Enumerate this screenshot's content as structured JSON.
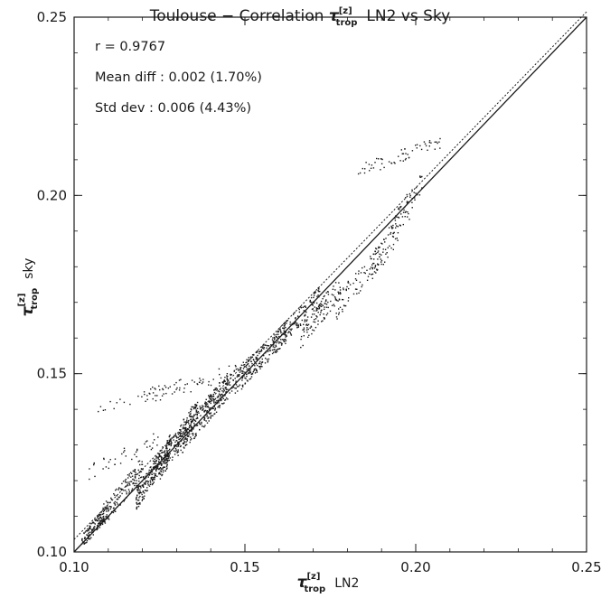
{
  "chart_data": {
    "type": "scatter",
    "title": {
      "prefix": "Toulouse  −  Correlation ",
      "symbol": "τ",
      "superscript": "[z]",
      "subscript": "trop",
      "suffix": "LN2  vs  Sky"
    },
    "xlabel": {
      "symbol": "τ",
      "superscript": "[z]",
      "subscript": "trop",
      "text": "LN2"
    },
    "ylabel": {
      "symbol": "τ",
      "superscript": "[z]",
      "subscript": "trop",
      "text": "sky"
    },
    "xlim": [
      0.1,
      0.25
    ],
    "ylim": [
      0.1,
      0.25
    ],
    "x_ticks": [
      0.1,
      0.15,
      0.2,
      0.25
    ],
    "y_ticks": [
      0.1,
      0.15,
      0.2,
      0.25
    ],
    "x_tick_labels": [
      "0.10",
      "0.15",
      "0.20",
      "0.25"
    ],
    "y_tick_labels": [
      "0.10",
      "0.15",
      "0.20",
      "0.25"
    ],
    "grid": false,
    "annotations": [
      "r = 0.9767",
      "Mean diff : 0.002 (1.70%)",
      "Std dev : 0.006 (4.43%)"
    ],
    "lines": [
      {
        "name": "1:1 line",
        "style": "solid",
        "x": [
          0.1,
          0.25
        ],
        "y": [
          0.1,
          0.25
        ]
      },
      {
        "name": "regression fit",
        "style": "dotted",
        "x": [
          0.1,
          0.25
        ],
        "y": [
          0.1035,
          0.2515
        ]
      }
    ],
    "clusters": [
      {
        "x": [
          0.102,
          0.11
        ],
        "y": [
          0.103,
          0.112
        ],
        "count": 140
      },
      {
        "x": [
          0.108,
          0.12
        ],
        "y": [
          0.11,
          0.124
        ],
        "count": 140
      },
      {
        "x": [
          0.118,
          0.128
        ],
        "y": [
          0.115,
          0.13
        ],
        "count": 260
      },
      {
        "x": [
          0.125,
          0.136
        ],
        "y": [
          0.124,
          0.14
        ],
        "count": 200
      },
      {
        "x": [
          0.13,
          0.145
        ],
        "y": [
          0.13,
          0.147
        ],
        "count": 200
      },
      {
        "x": [
          0.138,
          0.155
        ],
        "y": [
          0.14,
          0.155
        ],
        "count": 180
      },
      {
        "x": [
          0.148,
          0.162
        ],
        "y": [
          0.148,
          0.162
        ],
        "count": 140
      },
      {
        "x": [
          0.158,
          0.172
        ],
        "y": [
          0.158,
          0.172
        ],
        "count": 130
      },
      {
        "x": [
          0.166,
          0.178
        ],
        "y": [
          0.16,
          0.175
        ],
        "count": 100
      },
      {
        "x": [
          0.176,
          0.19
        ],
        "y": [
          0.168,
          0.184
        ],
        "count": 80
      },
      {
        "x": [
          0.186,
          0.198
        ],
        "y": [
          0.178,
          0.196
        ],
        "count": 70
      },
      {
        "x": [
          0.192,
          0.202
        ],
        "y": [
          0.19,
          0.204
        ],
        "count": 50
      },
      {
        "x": [
          0.183,
          0.207
        ],
        "y": [
          0.207,
          0.215
        ],
        "count": 60
      },
      {
        "x": [
          0.103,
          0.125
        ],
        "y": [
          0.122,
          0.132
        ],
        "count": 40
      },
      {
        "x": [
          0.106,
          0.14
        ],
        "y": [
          0.14,
          0.148
        ],
        "count": 40
      },
      {
        "x": [
          0.12,
          0.15
        ],
        "y": [
          0.144,
          0.152
        ],
        "count": 40
      }
    ]
  }
}
